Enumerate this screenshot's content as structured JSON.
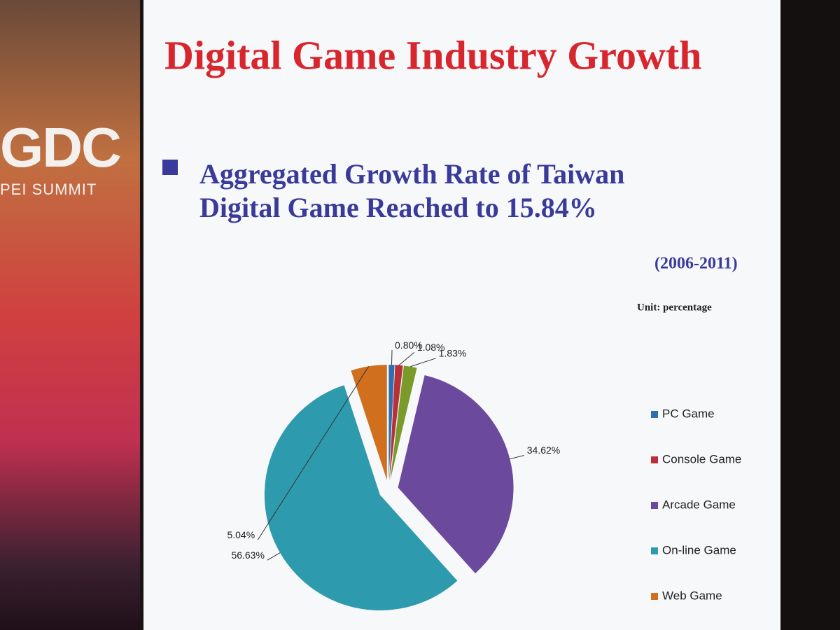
{
  "banner": {
    "logo": "GDC",
    "subtitle": "PEI SUMMIT"
  },
  "chart_data": {
    "type": "pie",
    "title": "Digital Game Industry  Growth",
    "subtitle": "Aggregated Growth Rate of Taiwan Digital Game Reached to 15.84%",
    "note": "(2006-2011)",
    "unit": "Unit: percentage",
    "categories": [
      "PC Game",
      "Console Game",
      null,
      "Arcade Game",
      "On-line Game",
      "Web Game"
    ],
    "values": [
      0.8,
      1.08,
      1.83,
      34.62,
      56.63,
      5.04
    ],
    "value_labels": [
      "0.80%",
      "1.08%",
      "1.83%",
      "34.62%",
      "56.63%",
      "5.04%"
    ],
    "colors": [
      "#2f6fb0",
      "#b8303a",
      "#7a9a2a",
      "#6b4a9e",
      "#2e9aae",
      "#d0701e"
    ]
  }
}
